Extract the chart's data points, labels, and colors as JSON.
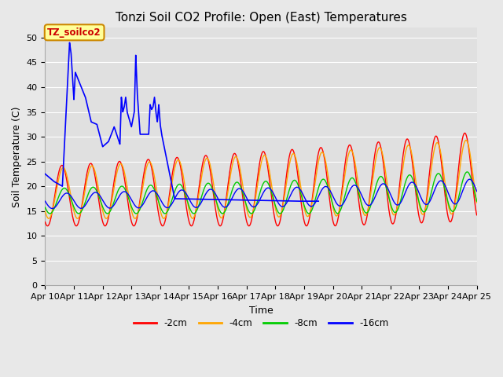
{
  "title": "Tonzi Soil CO2 Profile: Open (East) Temperatures",
  "xlabel": "Time",
  "ylabel": "Soil Temperature (C)",
  "ylim": [
    0,
    52
  ],
  "yticks": [
    0,
    5,
    10,
    15,
    20,
    25,
    30,
    35,
    40,
    45,
    50
  ],
  "colors": {
    "2cm": "#ff0000",
    "4cm": "#ffa500",
    "8cm": "#00cc00",
    "16cm": "#0000ff"
  },
  "legend_labels": [
    "-2cm",
    "-4cm",
    "-8cm",
    "-16cm"
  ],
  "annotation_label": "TZ_soilco2",
  "annotation_box_color": "#ffff99",
  "annotation_box_edgecolor": "#cc8800",
  "fig_facecolor": "#e8e8e8",
  "ax_facecolor": "#e0e0e0",
  "x_tick_labels": [
    "Apr 10",
    "Apr 11",
    "Apr 12",
    "Apr 13",
    "Apr 14",
    "Apr 15",
    "Apr 16",
    "Apr 17",
    "Apr 18",
    "Apr 19",
    "Apr 20",
    "Apr 21",
    "Apr 22",
    "Apr 23",
    "Apr 24",
    "Apr 25"
  ],
  "grid_color": "#ffffff",
  "title_fontsize": 11,
  "axis_fontsize": 9,
  "tick_fontsize": 8,
  "anomaly_keypoints_t": [
    0.0,
    0.3,
    0.6,
    0.85,
    0.9,
    1.0,
    1.05,
    1.4,
    1.6,
    1.8,
    2.0,
    2.1,
    2.2,
    2.4,
    2.6,
    2.65,
    2.7,
    2.75,
    2.8,
    2.85,
    2.9,
    3.0,
    3.1,
    3.15,
    3.2,
    3.3,
    3.6,
    3.65,
    3.7,
    3.75,
    3.8,
    3.85,
    3.9,
    3.95,
    4.0,
    4.05,
    4.5,
    8.7,
    9.5
  ],
  "anomaly_keypoints_y": [
    22.5,
    21.0,
    20.0,
    49.0,
    47.0,
    37.5,
    43.0,
    38.0,
    33.0,
    32.5,
    28.0,
    28.5,
    29.0,
    32.0,
    28.5,
    38.0,
    35.0,
    36.0,
    38.0,
    35.0,
    34.0,
    32.0,
    35.0,
    46.5,
    39.0,
    30.5,
    30.5,
    36.5,
    35.5,
    36.0,
    38.0,
    35.0,
    33.0,
    36.5,
    32.5,
    30.5,
    17.5,
    17.0,
    17.0
  ]
}
